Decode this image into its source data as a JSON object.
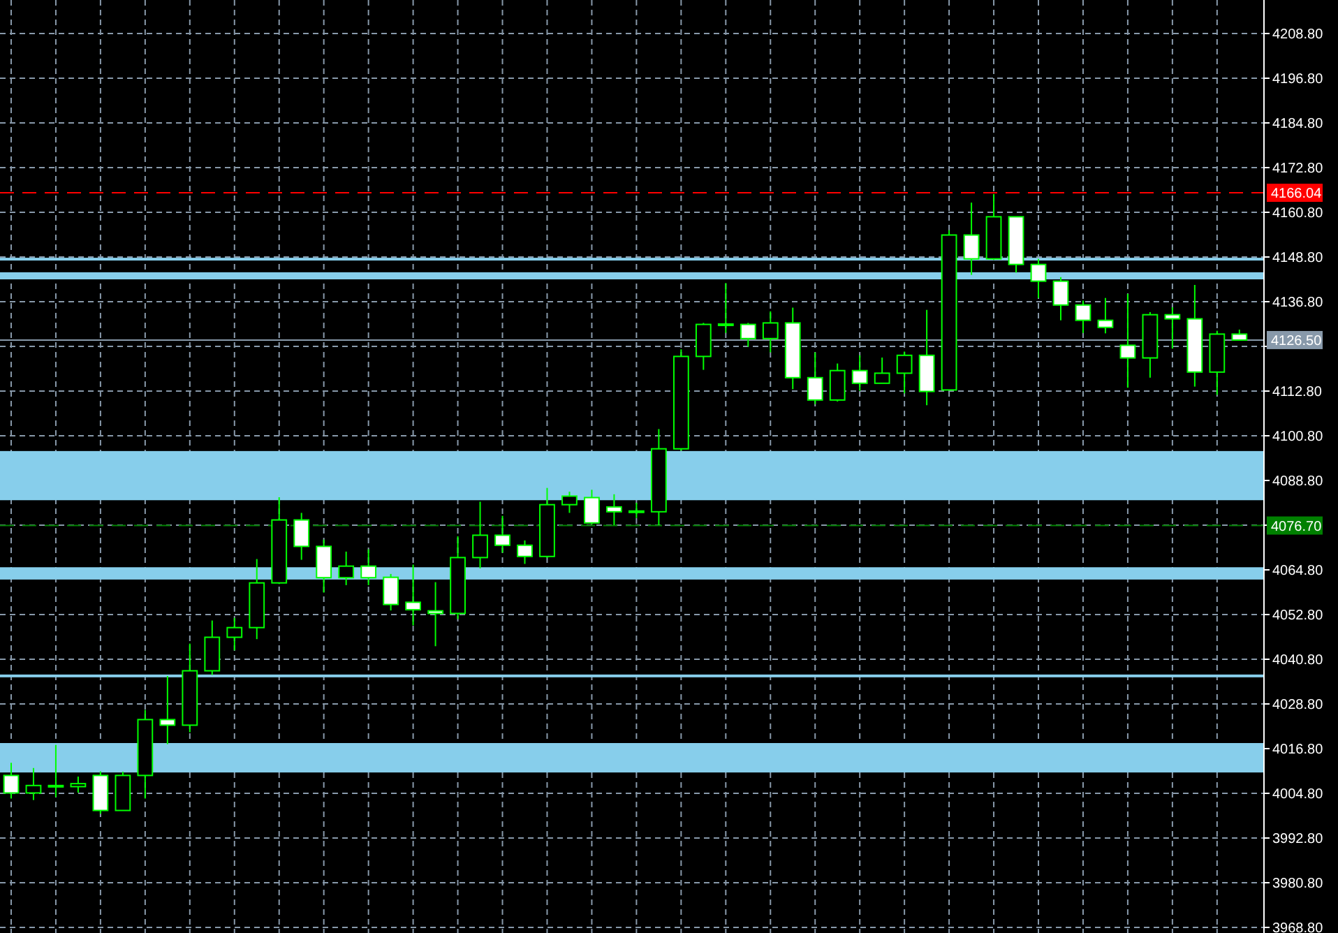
{
  "chart_data": {
    "type": "candlestick",
    "categories": [
      null,
      null,
      null,
      null,
      null,
      null,
      null,
      null,
      null,
      null,
      null,
      null,
      null,
      null,
      null,
      null,
      null,
      null,
      null,
      null,
      null,
      null,
      null,
      null,
      null,
      null,
      null,
      null,
      null,
      null,
      null,
      null,
      null,
      null,
      null,
      null,
      null,
      null,
      null,
      null,
      null,
      null,
      null,
      null,
      null,
      null,
      null,
      null,
      null,
      null,
      null,
      null,
      null,
      null,
      null,
      null
    ],
    "series": [
      {
        "color": "#00ff00",
        "ohlc": [
          [
            4009.6,
            4013.0,
            4003.4,
            4004.9
          ],
          [
            4004.9,
            4011.6,
            4003.0,
            4006.9
          ],
          [
            4006.7,
            4017.8,
            4003.8,
            4006.9
          ],
          [
            4006.6,
            4009.3,
            4005.0,
            4007.4
          ],
          [
            4009.6,
            4010.7,
            3999.3,
            4000.2
          ],
          [
            4000.2,
            4010.6,
            4000.2,
            4009.6
          ],
          [
            4009.6,
            4027.2,
            4003.4,
            4024.6
          ],
          [
            4024.6,
            4036.3,
            4018.0,
            4023.1
          ],
          [
            4023.1,
            4045.0,
            4021.2,
            4037.7
          ],
          [
            4037.7,
            4051.2,
            4036.6,
            4046.7
          ],
          [
            4046.7,
            4051.9,
            4043.2,
            4049.3
          ],
          [
            4049.3,
            4067.7,
            4046.2,
            4061.3
          ],
          [
            4061.3,
            4084.3,
            4061.0,
            4078.2
          ],
          [
            4078.2,
            4080.1,
            4067.5,
            4071.1
          ],
          [
            4071.1,
            4072.9,
            4058.7,
            4062.7
          ],
          [
            4062.7,
            4069.7,
            4060.7,
            4065.8
          ],
          [
            4065.8,
            4070.3,
            4060.7,
            4062.7
          ],
          [
            4062.8,
            4063.7,
            4053.9,
            4055.5
          ],
          [
            4056.1,
            4066.2,
            4049.9,
            4054.1
          ],
          [
            4053.8,
            4061.5,
            4044.3,
            4053.1
          ],
          [
            4053.1,
            4073.8,
            4051.6,
            4068.1
          ],
          [
            4068.1,
            4083.1,
            4065.2,
            4074.1
          ],
          [
            4074.1,
            4079.3,
            4069.4,
            4071.4
          ],
          [
            4071.4,
            4072.7,
            4066.4,
            4068.4
          ],
          [
            4068.4,
            4086.8,
            4068.0,
            4082.3
          ],
          [
            4082.3,
            4085.8,
            4080.1,
            4084.6
          ],
          [
            4084.2,
            4086.3,
            4077.0,
            4077.4
          ],
          [
            4081.7,
            4085.1,
            4076.8,
            4080.4
          ],
          [
            4080.6,
            4082.8,
            4078.7,
            4080.4
          ],
          [
            4080.4,
            4102.6,
            4076.8,
            4097.3
          ],
          [
            4097.3,
            4124.0,
            4096.8,
            4122.1
          ],
          [
            4122.1,
            4131.1,
            4118.5,
            4130.7
          ],
          [
            4130.6,
            4141.8,
            4128.4,
            4130.8
          ],
          [
            4130.7,
            4131.1,
            4124.7,
            4126.9
          ],
          [
            4126.9,
            4134.2,
            4123.2,
            4131.1
          ],
          [
            4131.1,
            4135.2,
            4113.3,
            4116.4
          ],
          [
            4116.4,
            4123.2,
            4109.3,
            4110.4
          ],
          [
            4110.4,
            4120.2,
            4110.0,
            4118.3
          ],
          [
            4118.3,
            4122.4,
            4112.9,
            4114.9
          ],
          [
            4114.9,
            4121.8,
            4114.9,
            4117.6
          ],
          [
            4117.6,
            4123.4,
            4112.2,
            4122.4
          ],
          [
            4122.4,
            4134.6,
            4109.0,
            4112.7
          ],
          [
            4113.1,
            4156.0,
            4113.0,
            4154.7
          ],
          [
            4154.7,
            4163.4,
            4144.0,
            4148.3
          ],
          [
            4148.3,
            4165.7,
            4148.0,
            4159.6
          ],
          [
            4159.6,
            4159.6,
            4144.6,
            4146.8
          ],
          [
            4146.8,
            4148.3,
            4137.8,
            4142.3
          ],
          [
            4142.3,
            4143.4,
            4131.8,
            4135.9
          ],
          [
            4135.9,
            4137.1,
            4128.4,
            4131.8
          ],
          [
            4131.8,
            4137.8,
            4128.3,
            4129.9
          ],
          [
            4125.1,
            4138.9,
            4113.7,
            4121.7
          ],
          [
            4121.7,
            4134.0,
            4116.4,
            4133.3
          ],
          [
            4133.3,
            4135.3,
            4124.2,
            4132.2
          ],
          [
            4132.2,
            4141.3,
            4114.0,
            4117.9
          ],
          [
            4117.9,
            4129.0,
            4111.8,
            4128.1
          ],
          [
            4128.1,
            4129.3,
            4126.5,
            4126.5
          ]
        ]
      }
    ],
    "ylim": [
      3967.3,
      4217.8
    ],
    "yticks": [
      {
        "value": 3968.8,
        "label": "3968.80"
      },
      {
        "value": 3980.8,
        "label": "3980.80"
      },
      {
        "value": 3992.8,
        "label": "3992.80"
      },
      {
        "value": 4004.8,
        "label": "4004.80"
      },
      {
        "value": 4016.8,
        "label": "4016.80"
      },
      {
        "value": 4028.8,
        "label": "4028.80"
      },
      {
        "value": 4040.8,
        "label": "4040.80"
      },
      {
        "value": 4052.8,
        "label": "4052.80"
      },
      {
        "value": 4064.8,
        "label": "4064.80"
      },
      {
        "value": 4076.8,
        "label": null
      },
      {
        "value": 4088.8,
        "label": "4088.80"
      },
      {
        "value": 4100.8,
        "label": "4100.80"
      },
      {
        "value": 4112.8,
        "label": "4112.80"
      },
      {
        "value": 4124.8,
        "label": null
      },
      {
        "value": 4136.8,
        "label": "4136.80"
      },
      {
        "value": 4148.8,
        "label": "4148.80"
      },
      {
        "value": 4160.8,
        "label": "4160.80"
      },
      {
        "value": 4172.8,
        "label": "4172.80"
      },
      {
        "value": 4184.8,
        "label": "4184.80"
      },
      {
        "value": 4196.8,
        "label": "4196.80"
      },
      {
        "value": 4208.8,
        "label": "4208.80"
      }
    ],
    "grid": true,
    "tick_labels": "y",
    "bands": [
      {
        "axis": "y",
        "from": 4010.4,
        "to": 4018.3,
        "color": "#87ceeb"
      },
      {
        "axis": "y",
        "from": 4036.0,
        "to": 4036.7,
        "color": "#87ceeb"
      },
      {
        "axis": "y",
        "from": 4062.2,
        "to": 4065.5,
        "color": "#87ceeb"
      },
      {
        "axis": "y",
        "from": 4083.5,
        "to": 4096.7,
        "color": "#87ceeb"
      },
      {
        "axis": "y",
        "from": 4142.8,
        "to": 4144.7,
        "color": "#87ceeb"
      },
      {
        "axis": "y",
        "from": 4148.2,
        "to": 4148.6,
        "color": "#87ceeb"
      }
    ],
    "ref_lines": [
      {
        "axis": "y",
        "value": 4166.04,
        "label": "4166.04",
        "color": "#ff0000",
        "line_style": "dashed"
      },
      {
        "axis": "y",
        "value": 4126.5,
        "label": "4126.50",
        "color": "#8899aa",
        "line_style": "solid"
      },
      {
        "axis": "y",
        "value": 4076.7,
        "label": "4076.70",
        "color": "#008000",
        "line_style": "dashed"
      }
    ]
  }
}
